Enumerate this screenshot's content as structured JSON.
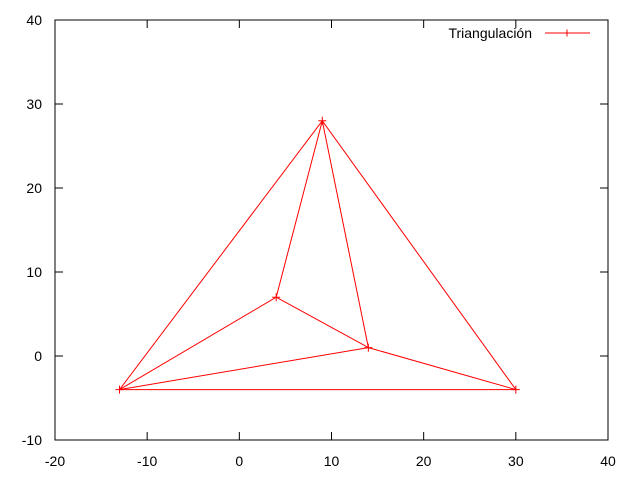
{
  "chart_data": {
    "type": "line",
    "title": "",
    "xlabel": "",
    "ylabel": "",
    "xlim": [
      -20,
      40
    ],
    "ylim": [
      -10,
      40
    ],
    "xticks": [
      "-20",
      "-10",
      "0",
      "10",
      "20",
      "30",
      "40"
    ],
    "yticks": [
      "-10",
      "0",
      "10",
      "20",
      "30",
      "40"
    ],
    "grid": false,
    "legend_position": "top-right",
    "series": [
      {
        "name": "Triangulación",
        "color": "#ff0000",
        "marker": "plus",
        "points": [
          {
            "x": -13,
            "y": -4
          },
          {
            "x": 9,
            "y": 28
          },
          {
            "x": 30,
            "y": -4
          },
          {
            "x": 4,
            "y": 7
          },
          {
            "x": 14,
            "y": 1
          }
        ],
        "segments": [
          [
            [
              -13,
              -4
            ],
            [
              9,
              28
            ]
          ],
          [
            [
              9,
              28
            ],
            [
              30,
              -4
            ]
          ],
          [
            [
              -13,
              -4
            ],
            [
              30,
              -4
            ]
          ],
          [
            [
              -13,
              -4
            ],
            [
              4,
              7
            ]
          ],
          [
            [
              4,
              7
            ],
            [
              9,
              28
            ]
          ],
          [
            [
              4,
              7
            ],
            [
              14,
              1
            ]
          ],
          [
            [
              9,
              28
            ],
            [
              14,
              1
            ]
          ],
          [
            [
              -13,
              -4
            ],
            [
              14,
              1
            ]
          ],
          [
            [
              14,
              1
            ],
            [
              30,
              -4
            ]
          ]
        ]
      }
    ]
  }
}
